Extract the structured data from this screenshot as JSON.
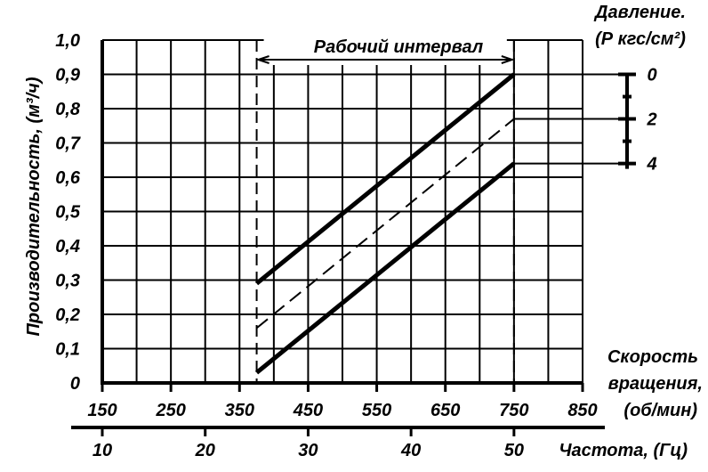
{
  "chart_data": {
    "type": "line",
    "ylabel": "Производительность, (м³/ч)",
    "xlabel_lines": [
      "Скорость",
      "вращения,",
      "(об/мин)"
    ],
    "x2label": "Частота, (Гц)",
    "right_title_lines": [
      "Давление.",
      "(Р кгс/см²)"
    ],
    "interval_label": "Рабочий интервал",
    "xlim": [
      150,
      850
    ],
    "ylim": [
      0,
      1.0
    ],
    "x_ticks": [
      150,
      250,
      350,
      450,
      550,
      650,
      750,
      850
    ],
    "x_tick_labels": [
      "150",
      "250",
      "350",
      "450",
      "550",
      "650",
      "750",
      "850"
    ],
    "y_ticks": [
      0,
      0.1,
      0.2,
      0.3,
      0.4,
      0.5,
      0.6,
      0.7,
      0.8,
      0.9,
      1.0
    ],
    "y_tick_labels": [
      "0",
      "0,1",
      "0,2",
      "0,3",
      "0,4",
      "0,5",
      "0,6",
      "0,7",
      "0,8",
      "0,9",
      "1,0"
    ],
    "freq_ticks": [
      10,
      20,
      30,
      40,
      50
    ],
    "freq_tick_labels": [
      "10",
      "20",
      "30",
      "40",
      "50"
    ],
    "working_interval": [
      375,
      750
    ],
    "pressure_labels": [
      "0",
      "2",
      "4"
    ],
    "series": [
      {
        "pressure": "0",
        "style": "solid",
        "x": [
          375,
          750
        ],
        "y": [
          0.29,
          0.9
        ]
      },
      {
        "pressure": "2",
        "style": "dashed",
        "x": [
          375,
          750
        ],
        "y": [
          0.16,
          0.77
        ]
      },
      {
        "pressure": "4",
        "style": "solid",
        "x": [
          375,
          750
        ],
        "y": [
          0.03,
          0.64
        ]
      }
    ],
    "grid": true
  }
}
